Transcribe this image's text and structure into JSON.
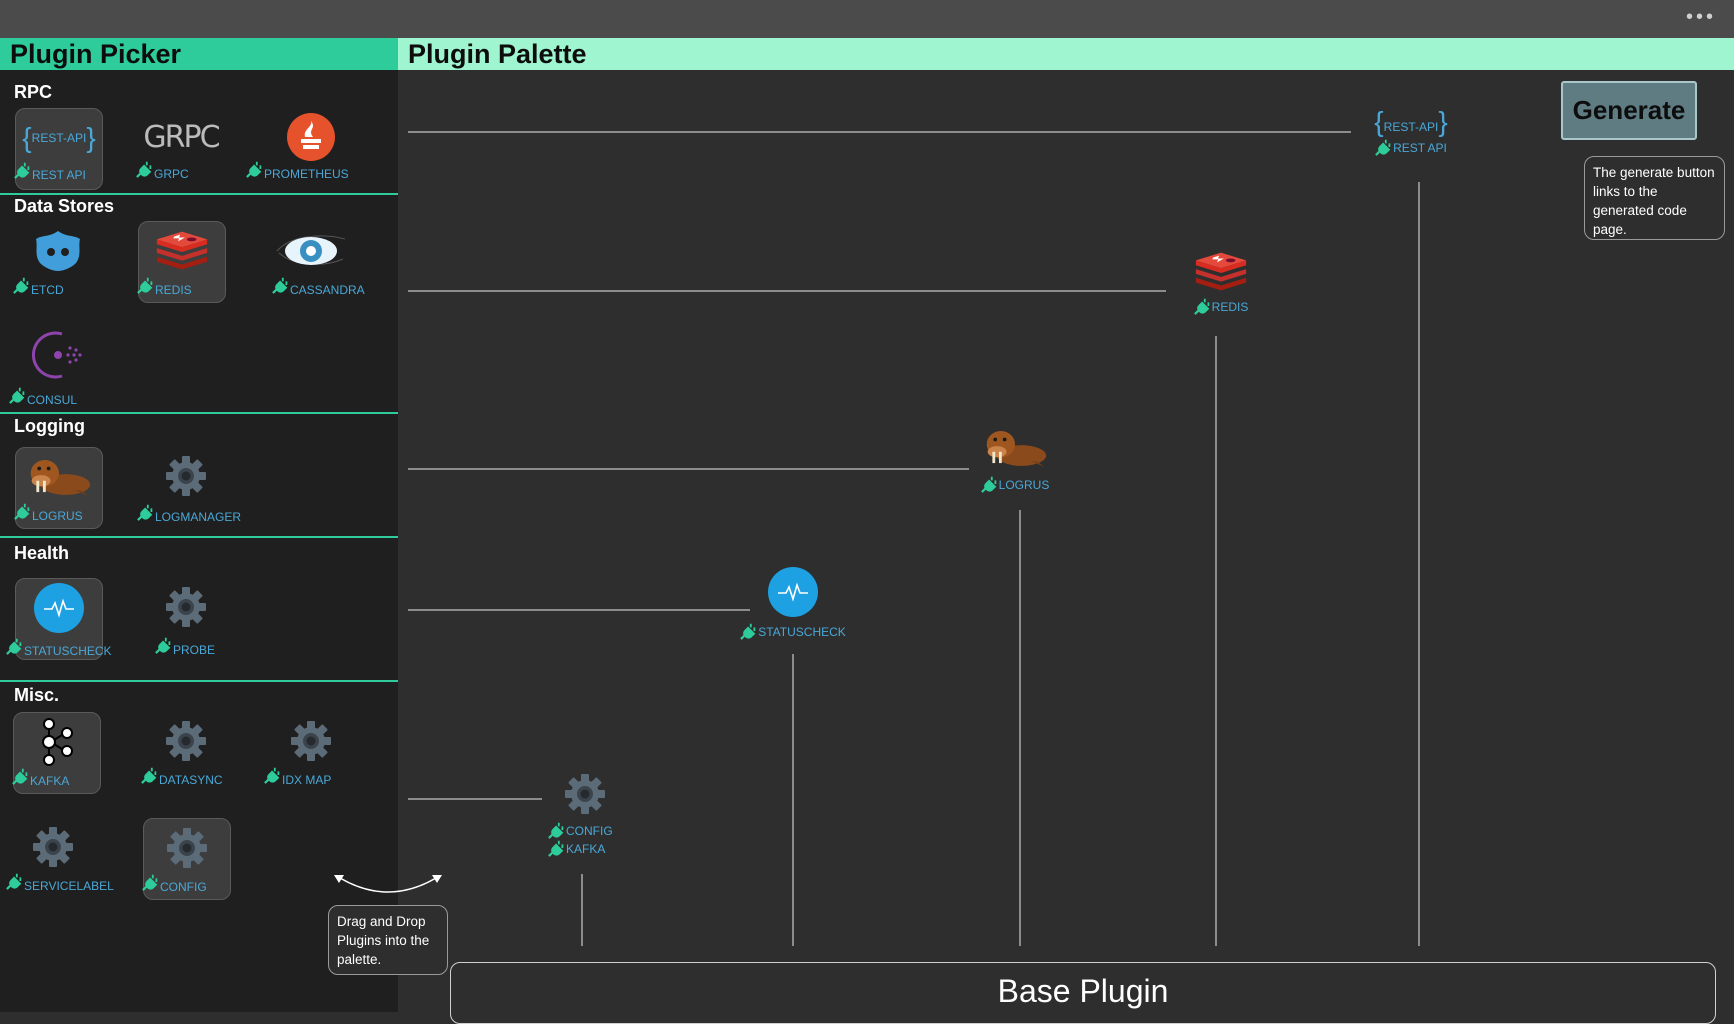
{
  "window": {
    "more_icon": "more-dots-icon"
  },
  "picker": {
    "title": "Plugin Picker",
    "sections": {
      "rpc": {
        "title": "RPC",
        "items": [
          "REST API",
          "GRPC",
          "PROMETHEUS"
        ]
      },
      "data_stores": {
        "title": "Data Stores",
        "items": [
          "ETCD",
          "REDIS",
          "CASSANDRA",
          "CONSUL"
        ]
      },
      "logging": {
        "title": "Logging",
        "items": [
          "LOGRUS",
          "LOGMANAGER"
        ]
      },
      "health": {
        "title": "Health",
        "items": [
          "STATUSCHECK",
          "PROBE"
        ]
      },
      "misc": {
        "title": "Misc.",
        "items": [
          "KAFKA",
          "DATASYNC",
          "IDX MAP",
          "SERVICELABEL",
          "CONFIG"
        ]
      }
    },
    "selected": [
      "REST API",
      "REDIS",
      "LOGRUS",
      "STATUSCHECK",
      "KAFKA",
      "CONFIG"
    ]
  },
  "palette": {
    "title": "Plugin Palette",
    "nodes": [
      "REST API",
      "REDIS",
      "LOGRUS",
      "STATUSCHECK",
      "CONFIG",
      "KAFKA"
    ],
    "base": "Base Plugin"
  },
  "generate": {
    "label": "Generate",
    "tooltip": "The generate button links to the generated code page."
  },
  "drag_hint": "Drag and Drop Plugins into the palette.",
  "icons": {
    "plug": "plug-icon",
    "gear": "gear-icon"
  },
  "colors": {
    "accent": "#2ecc9a",
    "palette_header": "#9ff5cf",
    "label": "#4aa8d8",
    "generate": "#5f7c82"
  }
}
